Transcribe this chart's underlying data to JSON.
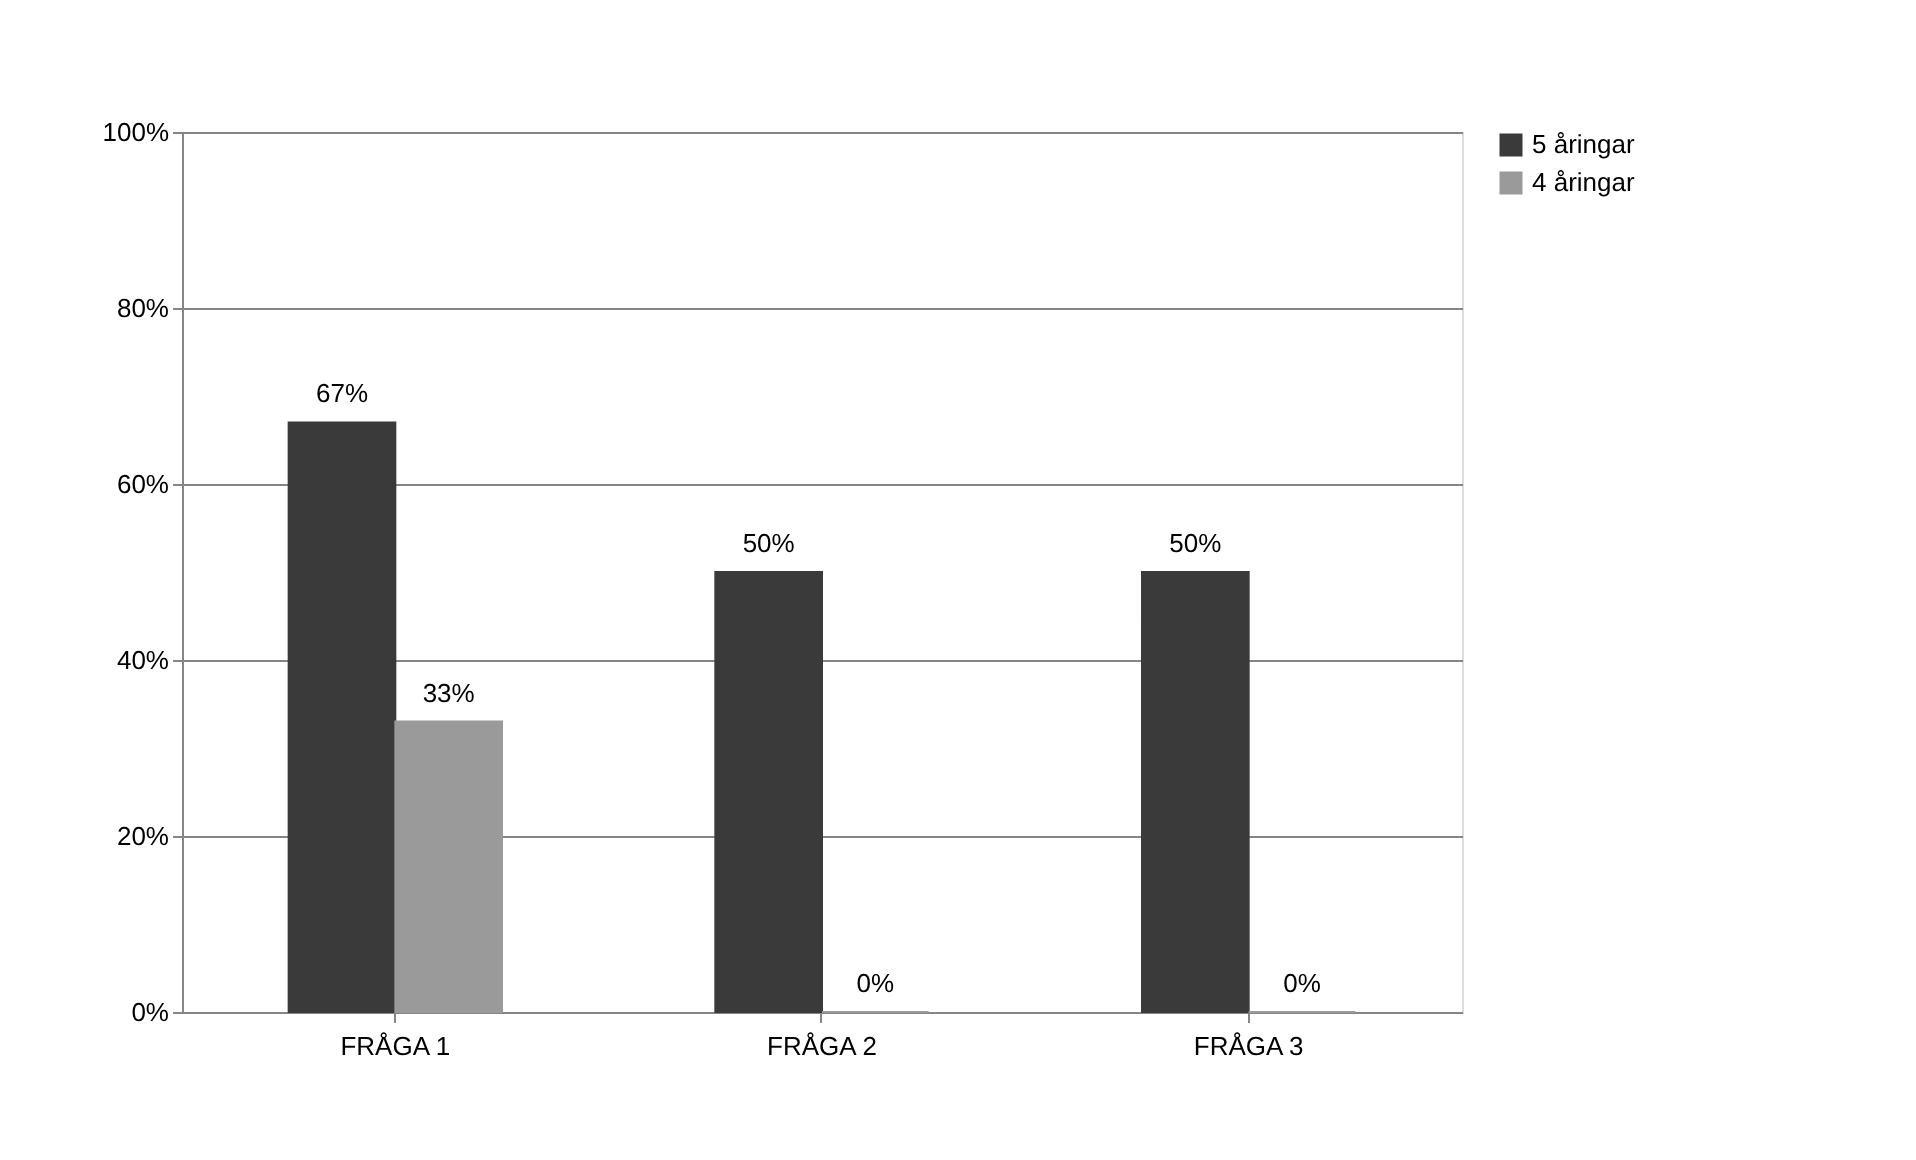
{
  "chart_data": {
    "type": "bar",
    "categories": [
      "FRÅGA 1",
      "FRÅGA 2",
      "FRÅGA 3"
    ],
    "series": [
      {
        "name": "5 åringar",
        "color": "#3a3a3a",
        "values": [
          67,
          50,
          50
        ],
        "value_labels": [
          "67%",
          "50%",
          "50%"
        ]
      },
      {
        "name": "4 åringar",
        "color": "#9a9a9a",
        "values": [
          33,
          0,
          0
        ],
        "value_labels": [
          "33%",
          "0%",
          "0%"
        ]
      }
    ],
    "ylim": [
      0,
      100
    ],
    "yticks": [
      {
        "value": 0,
        "label": "0%"
      },
      {
        "value": 20,
        "label": "20%"
      },
      {
        "value": 40,
        "label": "40%"
      },
      {
        "value": 60,
        "label": "60%"
      },
      {
        "value": 80,
        "label": "80%"
      },
      {
        "value": 100,
        "label": "100%"
      }
    ],
    "grid": "y",
    "legend": "right"
  }
}
